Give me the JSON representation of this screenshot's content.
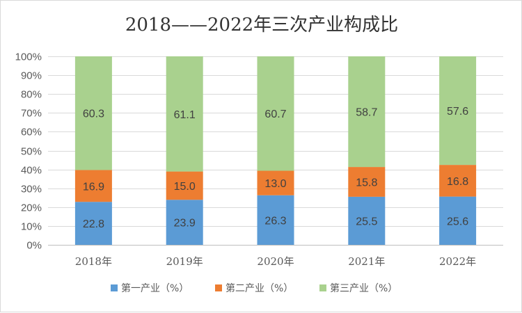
{
  "chart_data": {
    "type": "bar",
    "stacked": true,
    "percent_stacked": true,
    "title": "2018——2022年三次产业构成比",
    "categories": [
      "2018年",
      "2019年",
      "2020年",
      "2021年",
      "2022年"
    ],
    "series": [
      {
        "name": "第一产业（%）",
        "color": "#5b9bd5",
        "values": [
          22.8,
          23.9,
          26.3,
          25.5,
          25.6
        ]
      },
      {
        "name": "第二产业（%）",
        "color": "#ed7d31",
        "values": [
          16.9,
          15.0,
          13.0,
          15.8,
          16.8
        ]
      },
      {
        "name": "第三产业（%）",
        "color": "#a9d18e",
        "values": [
          60.3,
          61.1,
          60.7,
          58.7,
          57.6
        ]
      }
    ],
    "y_ticks": [
      "0%",
      "10%",
      "20%",
      "30%",
      "40%",
      "50%",
      "60%",
      "70%",
      "80%",
      "90%",
      "100%"
    ],
    "ylim": [
      0,
      100
    ],
    "grid": true,
    "legend_position": "bottom",
    "xlabel": "",
    "ylabel": ""
  }
}
